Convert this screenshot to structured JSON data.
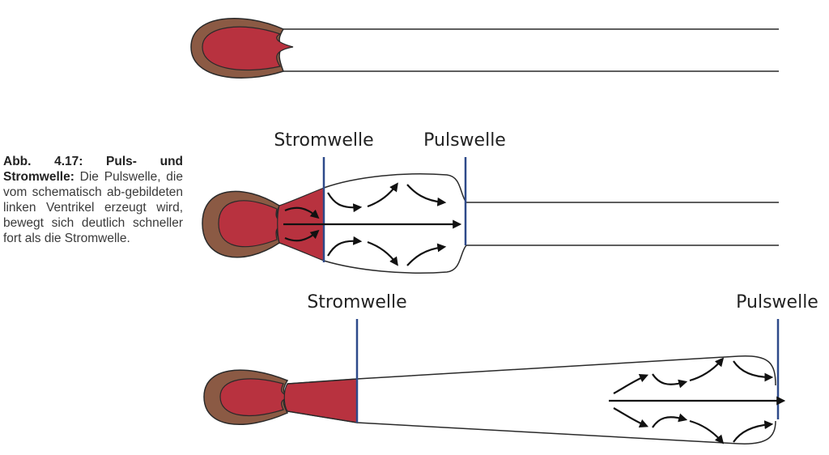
{
  "caption": {
    "title": "Abb. 4.17: Puls- und Stromwelle:",
    "text": "Die Pulswelle, die vom schematisch ab-gebildeten linken Ventrikel erzeugt wird, bewegt sich deutlich schneller fort als die Stromwelle."
  },
  "labels": {
    "mid_strom": "Stromwelle",
    "mid_puls": "Pulswelle",
    "bot_strom": "Stromwelle",
    "bot_puls": "Pulswelle"
  },
  "colors": {
    "muscle": "#8b5a44",
    "blood": "#b8323f",
    "wave_line": "#2e4a8a",
    "outline": "#2a2a2a"
  }
}
